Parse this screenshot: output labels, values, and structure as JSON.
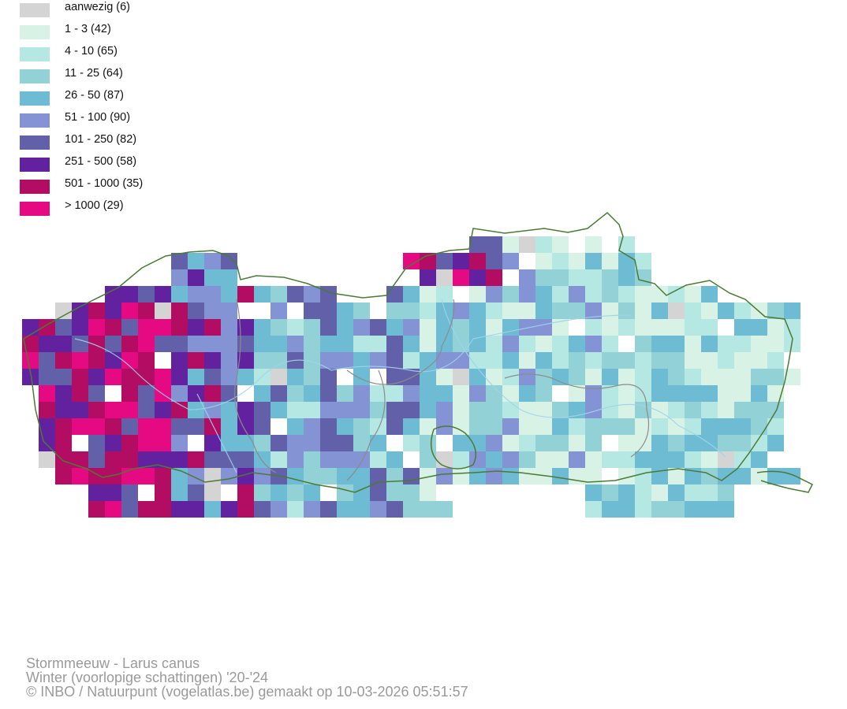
{
  "legend": {
    "items": [
      {
        "label": "aanwezig (6)",
        "color": "#d4d4d4"
      },
      {
        "label": "1 - 3 (42)",
        "color": "#d9f2e6"
      },
      {
        "label": "4 - 10 (65)",
        "color": "#b5e8e2"
      },
      {
        "label": "11 - 25 (64)",
        "color": "#92d1d5"
      },
      {
        "label": "26 - 50 (87)",
        "color": "#6ebbd4"
      },
      {
        "label": "51 - 100 (90)",
        "color": "#8393d3"
      },
      {
        "label": "101 - 250 (82)",
        "color": "#6160a8"
      },
      {
        "label": "251 - 500 (58)",
        "color": "#6222a0"
      },
      {
        "label": "501 - 1000 (35)",
        "color": "#b20c63"
      },
      {
        "label": "> 1000 (29)",
        "color": "#e60a82"
      }
    ]
  },
  "map": {
    "region_outline_color": "#4b7a35",
    "internal_border_color": "#8c8c8c",
    "river_color": "#9fd4ea"
  },
  "caption": {
    "species": "Stormmeeuw - Larus canus",
    "period": "Winter (voorlopige schattingen) '20-'24",
    "credit": "© INBO / Natuurpunt (vogelatlas.be) gemaakt op 10-03-2026 05:51:57"
  }
}
